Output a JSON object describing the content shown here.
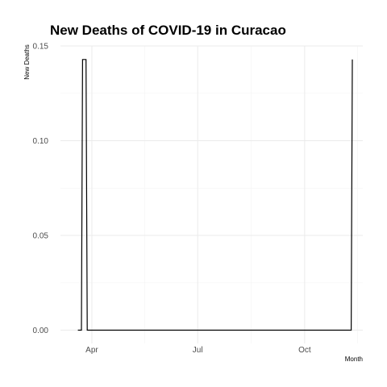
{
  "chart_data": {
    "type": "line",
    "title": "New Deaths of COVID-19 in Curacao",
    "xlabel": "Month",
    "ylabel": "New Deaths",
    "x_tick_labels": [
      "Apr",
      "Jul",
      "Oct"
    ],
    "x_ticks": [
      "2020-04-01",
      "2020-07-01",
      "2020-10-01"
    ],
    "y_tick_labels": [
      "0.00",
      "0.05",
      "0.10",
      "0.15"
    ],
    "y_ticks": [
      0,
      0.05,
      0.1,
      0.15
    ],
    "xlim": [
      "2020-03-05",
      "2020-11-20"
    ],
    "ylim": [
      -0.007,
      0.15
    ],
    "grid": true,
    "legend": "none",
    "series": [
      {
        "color": "#000000",
        "points": [
          {
            "x": "2020-03-20",
            "y": 0
          },
          {
            "x": "2020-03-23",
            "y": 0
          },
          {
            "x": "2020-03-24",
            "y": 0.1428571
          },
          {
            "x": "2020-03-27",
            "y": 0.1428571
          },
          {
            "x": "2020-03-28",
            "y": 0
          },
          {
            "x": "2020-11-10",
            "y": 0
          },
          {
            "x": "2020-11-11",
            "y": 0.1428571
          }
        ]
      }
    ]
  }
}
